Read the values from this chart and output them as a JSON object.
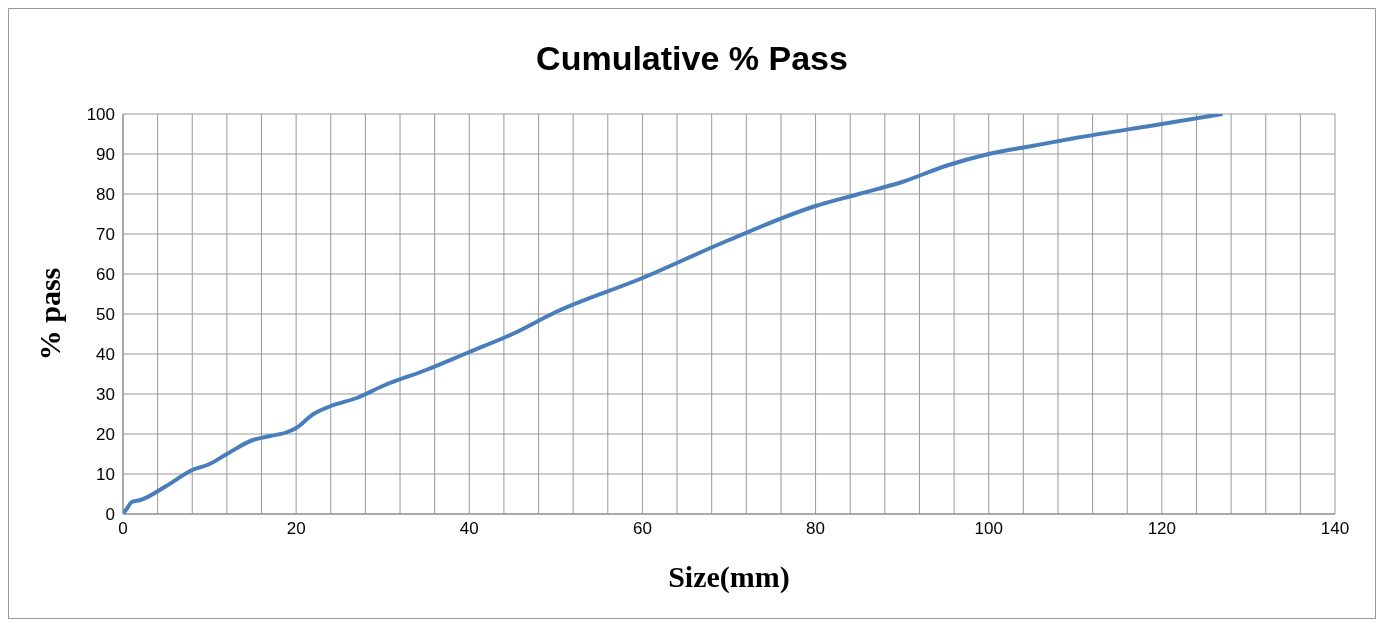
{
  "chart_data": {
    "type": "line",
    "title": "Cumulative % Pass",
    "xlabel": "Size(mm)",
    "ylabel": "%  pass",
    "x": [
      0,
      0.5,
      1,
      2,
      5,
      8,
      10,
      12,
      15,
      17,
      19,
      20,
      22,
      24,
      27,
      30,
      35,
      40,
      45,
      50,
      60,
      70,
      80,
      85,
      90,
      95,
      100,
      105,
      110,
      120,
      127
    ],
    "series": [
      {
        "color": "#4a7ebb",
        "values": [
          0,
          1.5,
          3,
          3.5,
          7,
          11,
          12.5,
          15,
          18.5,
          19.5,
          20.5,
          21.5,
          25,
          27,
          29,
          32,
          36,
          40.5,
          45,
          50.5,
          59,
          68.5,
          77,
          80,
          83,
          87,
          90,
          92,
          94,
          97.5,
          100
        ]
      }
    ],
    "xlim": [
      0,
      140
    ],
    "ylim": [
      0,
      100
    ],
    "xticks": [
      0,
      {
        "value": 4,
        "label": null
      },
      {
        "value": 8,
        "label": null
      },
      {
        "value": 12,
        "label": null
      },
      {
        "value": 16,
        "label": null
      },
      20,
      {
        "value": 24,
        "label": null
      },
      {
        "value": 28,
        "label": null
      },
      {
        "value": 32,
        "label": null
      },
      {
        "value": 36,
        "label": null
      },
      40,
      {
        "value": 44,
        "label": null
      },
      {
        "value": 48,
        "label": null
      },
      {
        "value": 52,
        "label": null
      },
      {
        "value": 56,
        "label": null
      },
      60,
      {
        "value": 64,
        "label": null
      },
      {
        "value": 68,
        "label": null
      },
      {
        "value": 72,
        "label": null
      },
      {
        "value": 76,
        "label": null
      },
      80,
      {
        "value": 84,
        "label": null
      },
      {
        "value": 88,
        "label": null
      },
      {
        "value": 92,
        "label": null
      },
      {
        "value": 96,
        "label": null
      },
      100,
      {
        "value": 104,
        "label": null
      },
      {
        "value": 108,
        "label": null
      },
      {
        "value": 112,
        "label": null
      },
      {
        "value": 116,
        "label": null
      },
      120,
      {
        "value": 124,
        "label": null
      },
      {
        "value": 128,
        "label": null
      },
      {
        "value": 132,
        "label": null
      },
      {
        "value": 136,
        "label": null
      },
      140
    ],
    "yticks": [
      0,
      10,
      20,
      30,
      40,
      50,
      60,
      70,
      80,
      90,
      100
    ],
    "grid": true,
    "legend": false,
    "marker": "none",
    "line_style": "solid"
  }
}
